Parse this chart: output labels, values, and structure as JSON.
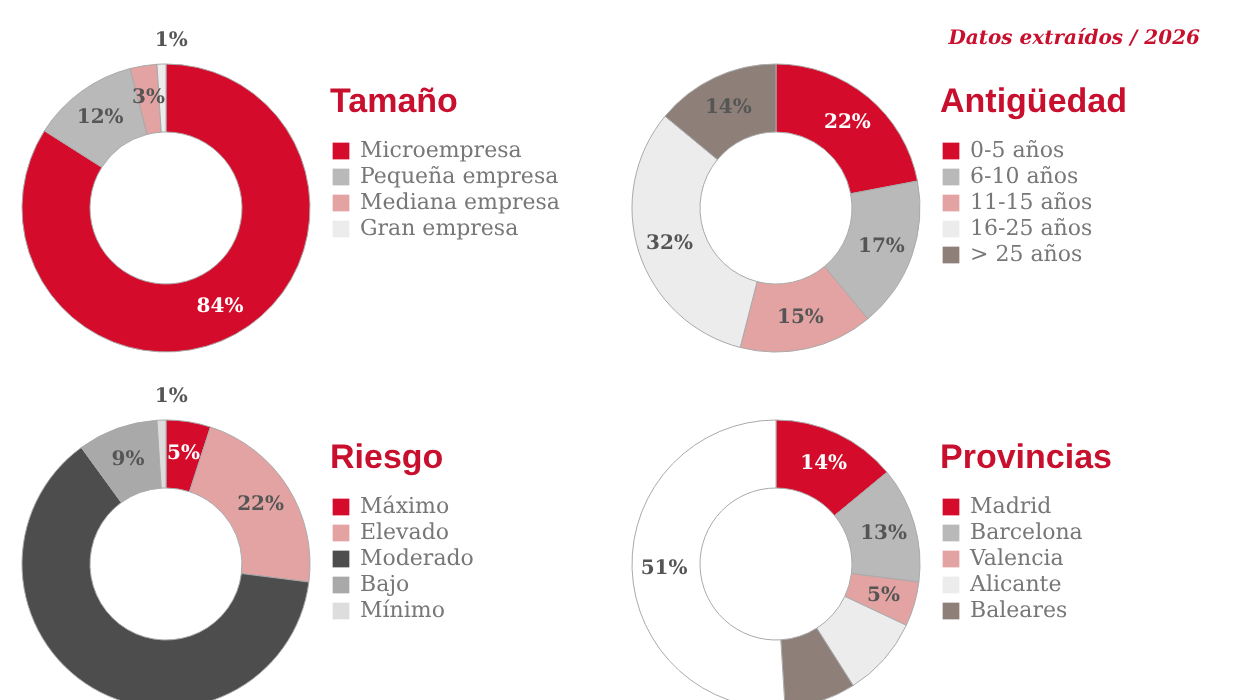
{
  "chart_data": [
    {
      "type": "donut",
      "title": "Tamaño",
      "categories": [
        "Microempresa",
        "Pequeña empresa",
        "Mediana empresa",
        "Gran empresa"
      ],
      "values": [
        84,
        12,
        3,
        1
      ],
      "colors": [
        "#d50b2c",
        "#b9b9b9",
        "#e3a3a3",
        "#ececec"
      ],
      "value_labels": [
        "84%",
        "12%",
        "3%",
        "1%"
      ],
      "legend": "right"
    },
    {
      "type": "donut",
      "title": "Antigüedad",
      "annotations": [
        "Datos extraídos / 2026"
      ],
      "categories": [
        "0-5 años",
        "6-10 años",
        "11-15 años",
        "16-25 años",
        "> 25 años"
      ],
      "values": [
        22,
        17,
        15,
        32,
        14
      ],
      "colors": [
        "#d50b2c",
        "#b9b9b9",
        "#e3a3a3",
        "#ececec",
        "#8e7f79"
      ],
      "value_labels": [
        "22%",
        "17%",
        "15%",
        "32%",
        "14%"
      ],
      "legend": "right"
    },
    {
      "type": "donut",
      "title": "Riesgo",
      "categories": [
        "Máximo",
        "Elevado",
        "Moderado",
        "Bajo",
        "Mínimo"
      ],
      "values": [
        5,
        22,
        63,
        9,
        1
      ],
      "colors": [
        "#d50b2c",
        "#e3a3a3",
        "#4d4d4d",
        "#a9a9a9",
        "#dddddd"
      ],
      "value_labels": [
        "5%",
        "22%",
        null,
        "9%",
        "1%"
      ],
      "legend": "right"
    },
    {
      "type": "donut",
      "title": "Provincias",
      "categories": [
        "Madrid",
        "Barcelona",
        "Valencia",
        "Alicante",
        "Baleares",
        null
      ],
      "values": [
        14,
        13,
        5,
        9,
        8,
        51
      ],
      "colors": [
        "#d50b2c",
        "#b9b9b9",
        "#e3a3a3",
        "#ececec",
        "#8e7f79",
        "#ffffff"
      ],
      "value_labels": [
        "14%",
        "13%",
        "5%",
        null,
        null,
        "51%"
      ],
      "legend": "right"
    }
  ]
}
